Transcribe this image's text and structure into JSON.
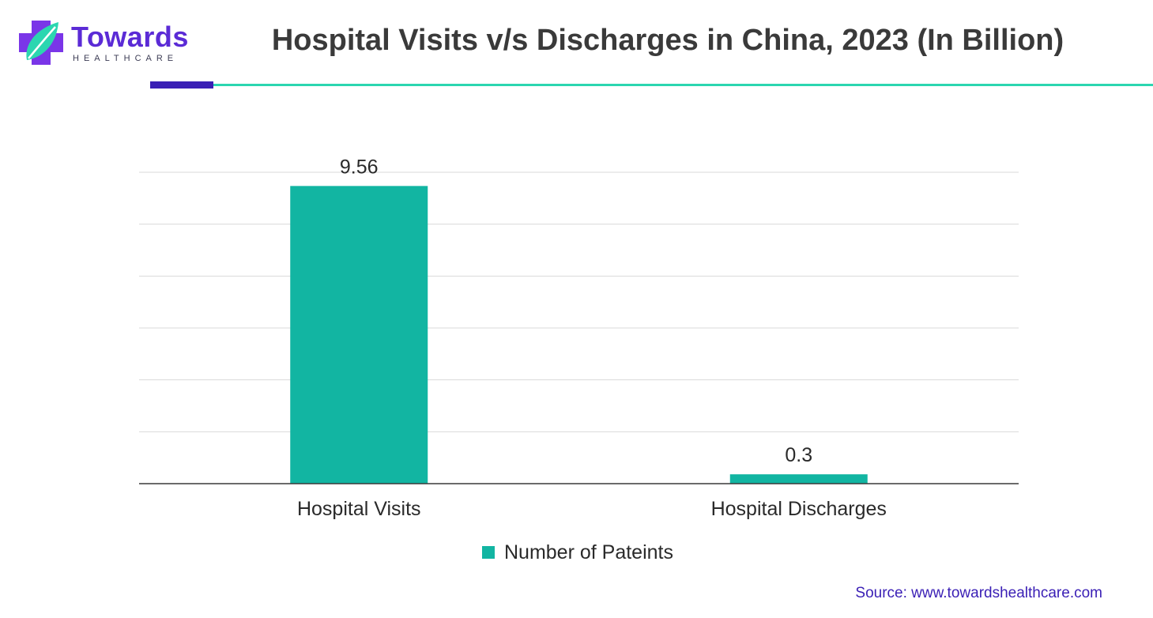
{
  "brand": {
    "name": "Towards",
    "sub": "HEALTHCARE",
    "colors": {
      "primary": "#5b2bd6",
      "accent": "#2bd6b0"
    }
  },
  "title": "Hospital Visits v/s Discharges in China, 2023 (In Billion)",
  "source": "Source: www.towardshealthcare.com",
  "chart_data": {
    "type": "bar",
    "categories": [
      "Hospital Visits",
      "Hospital Discharges"
    ],
    "series": [
      {
        "name": "Number of Pateints",
        "values": [
          9.56,
          0.3
        ],
        "color": "#12b5a2"
      }
    ],
    "data_labels": [
      "9.56",
      "0.3"
    ],
    "ylim": [
      0,
      10
    ],
    "grid": true,
    "legend": "bottom-center"
  }
}
